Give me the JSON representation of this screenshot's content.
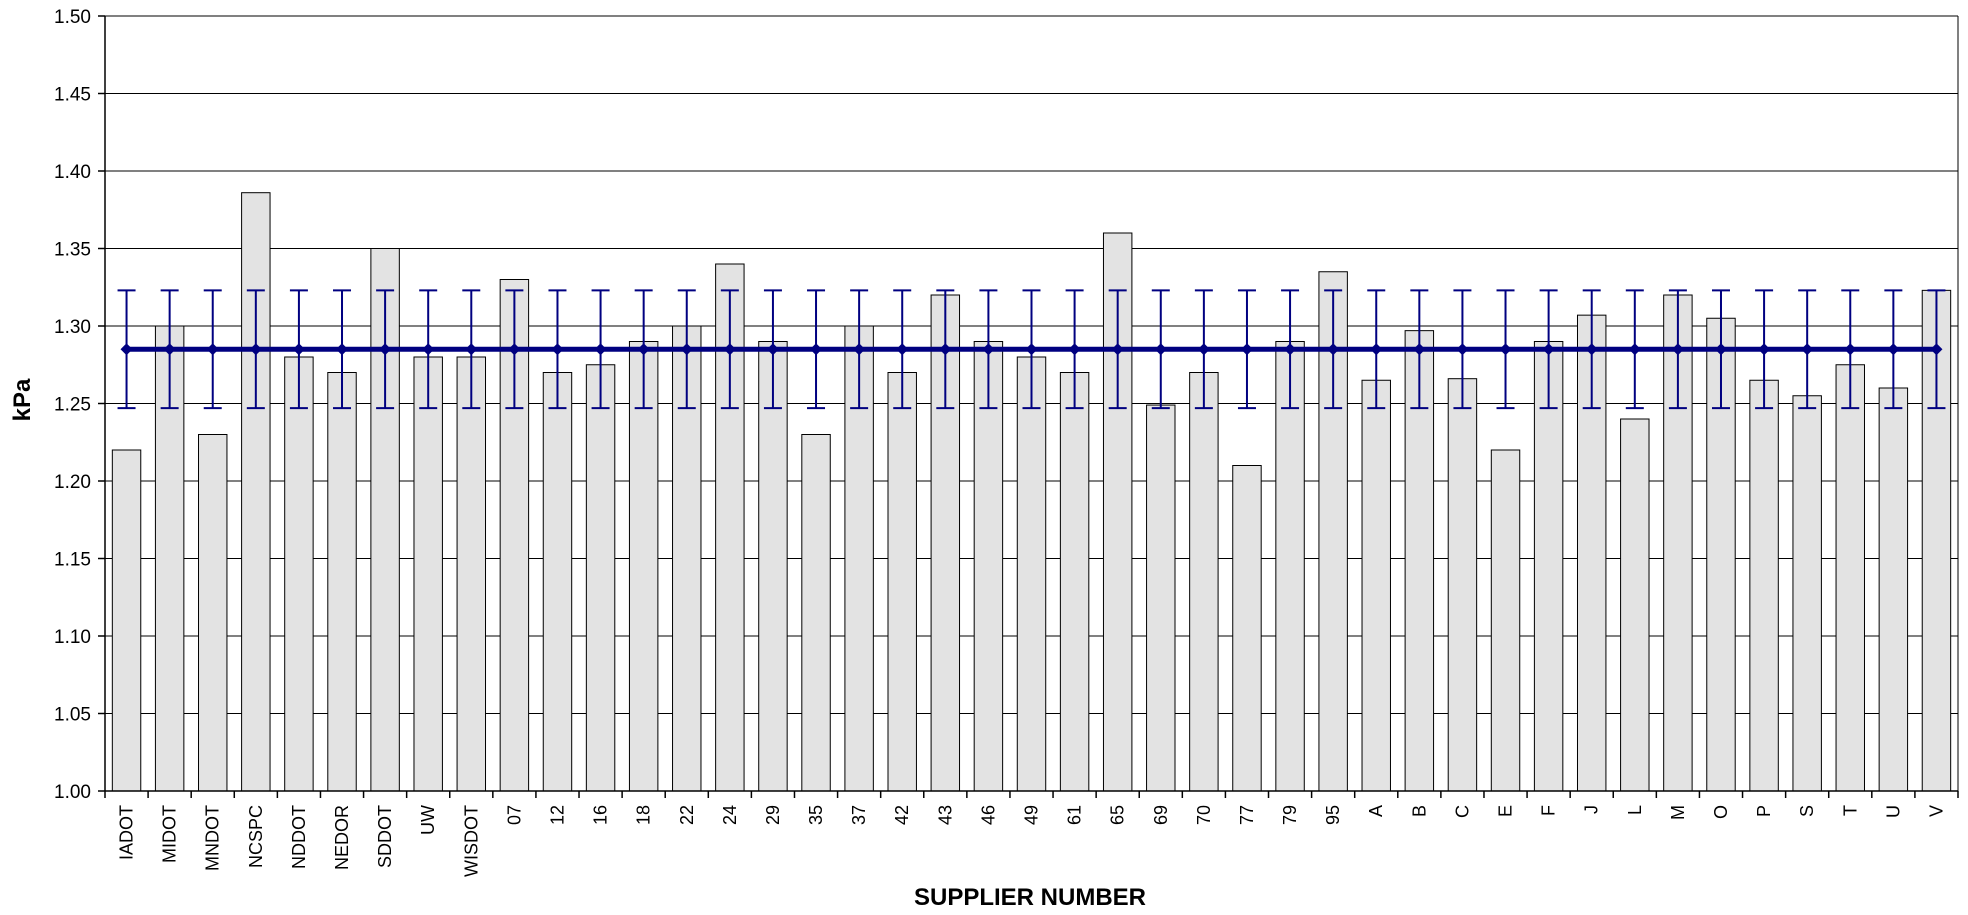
{
  "chart_data": {
    "type": "bar",
    "title": "",
    "xlabel": "SUPPLIER NUMBER",
    "ylabel": "kPa",
    "ylim": [
      1.0,
      1.5
    ],
    "yticks": [
      "1.00",
      "1.05",
      "1.10",
      "1.15",
      "1.20",
      "1.25",
      "1.30",
      "1.35",
      "1.40",
      "1.45",
      "1.50"
    ],
    "grid": true,
    "legend": "none",
    "categories": [
      "IADOT",
      "MIDOT",
      "MNDOT",
      "NCSPC",
      "NDDOT",
      "NEDOR",
      "SDDOT",
      "UW",
      "WISDOT",
      "07",
      "12",
      "16",
      "18",
      "22",
      "24",
      "29",
      "35",
      "37",
      "42",
      "43",
      "46",
      "49",
      "61",
      "65",
      "69",
      "70",
      "77",
      "79",
      "95",
      "A",
      "B",
      "C",
      "E",
      "F",
      "J",
      "L",
      "M",
      "O",
      "P",
      "S",
      "T",
      "U",
      "V"
    ],
    "values": [
      1.22,
      1.3,
      1.23,
      1.386,
      1.28,
      1.27,
      1.35,
      1.28,
      1.28,
      1.33,
      1.27,
      1.275,
      1.29,
      1.3,
      1.34,
      1.29,
      1.23,
      1.3,
      1.27,
      1.32,
      1.29,
      1.28,
      1.27,
      1.36,
      1.249,
      1.27,
      1.21,
      1.29,
      1.335,
      1.265,
      1.297,
      1.266,
      1.22,
      1.29,
      1.307,
      1.24,
      1.32,
      1.305,
      1.265,
      1.255,
      1.275,
      1.26,
      1.323
    ],
    "mean_line": {
      "value": 1.285,
      "error_upper": 1.323,
      "error_lower": 1.247
    },
    "colors": {
      "bar_fill": "#e3e3e3",
      "bar_stroke": "#000000",
      "mean_line": "#000080",
      "grid": "#000000"
    }
  }
}
